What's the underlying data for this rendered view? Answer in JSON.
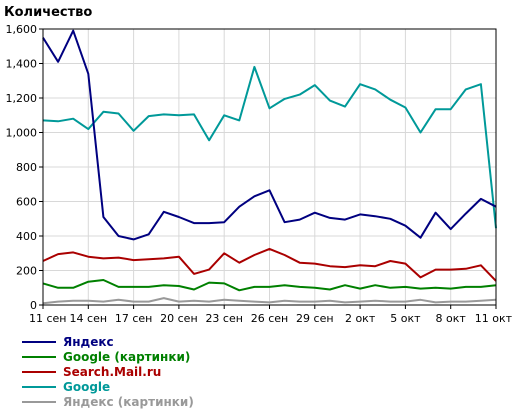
{
  "chart_data": {
    "type": "line",
    "ylabel": "Количество",
    "ylim": [
      0,
      1600
    ],
    "yticks": [
      "0",
      "200",
      "400",
      "600",
      "800",
      "1,000",
      "1,200",
      "1,400",
      "1,600"
    ],
    "x_tick_labels": [
      "11 сен",
      "14 сен",
      "17 сен",
      "20 сен",
      "23 сен",
      "26 сен",
      "29 сен",
      "2 окт",
      "5 окт",
      "8 окт",
      "11 окт"
    ],
    "grid": true,
    "legend_position": "bottom-left",
    "series": [
      {
        "name": "Яндекс",
        "color": "#000080",
        "values": [
          1550,
          1410,
          1590,
          1340,
          510,
          400,
          380,
          410,
          540,
          510,
          475,
          475,
          480,
          570,
          630,
          665,
          480,
          495,
          535,
          505,
          495,
          525,
          515,
          500,
          460,
          390,
          535,
          440,
          530,
          615,
          570
        ]
      },
      {
        "name": "Google (картинки)",
        "color": "#008000",
        "values": [
          125,
          100,
          100,
          135,
          145,
          105,
          105,
          105,
          115,
          110,
          90,
          130,
          125,
          85,
          105,
          105,
          115,
          105,
          100,
          90,
          115,
          95,
          115,
          100,
          105,
          95,
          100,
          95,
          105,
          105,
          115
        ]
      },
      {
        "name": "Search.Mail.ru",
        "color": "#aa0000",
        "values": [
          255,
          295,
          305,
          280,
          270,
          275,
          260,
          265,
          270,
          280,
          180,
          205,
          300,
          245,
          290,
          325,
          290,
          245,
          240,
          225,
          220,
          230,
          225,
          255,
          240,
          160,
          205,
          205,
          210,
          230,
          140
        ]
      },
      {
        "name": "Google",
        "color": "#009999",
        "values": [
          1070,
          1065,
          1080,
          1020,
          1120,
          1110,
          1010,
          1095,
          1105,
          1100,
          1105,
          955,
          1100,
          1070,
          1380,
          1140,
          1195,
          1220,
          1275,
          1185,
          1150,
          1280,
          1250,
          1190,
          1145,
          1000,
          1135,
          1135,
          1250,
          1280,
          445
        ]
      },
      {
        "name": "Яндекс (картинки)",
        "color": "#999999",
        "values": [
          10,
          20,
          25,
          25,
          20,
          30,
          20,
          20,
          40,
          20,
          25,
          20,
          30,
          25,
          20,
          15,
          25,
          20,
          20,
          25,
          15,
          20,
          25,
          20,
          20,
          30,
          15,
          20,
          20,
          25,
          30
        ]
      }
    ]
  }
}
